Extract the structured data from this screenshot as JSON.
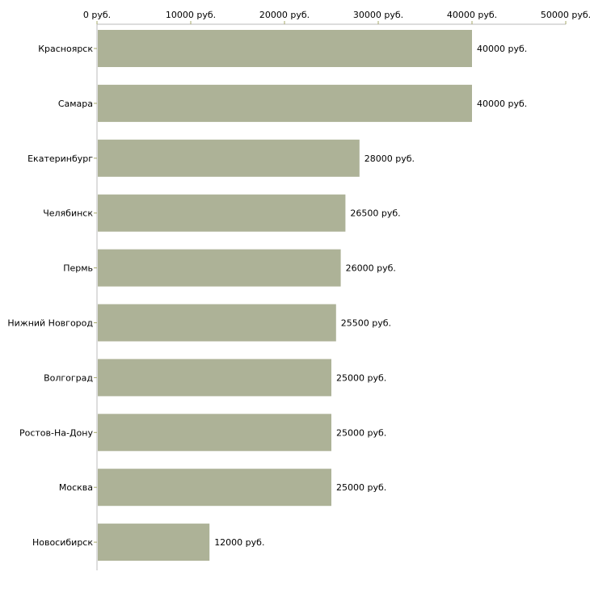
{
  "chart_data": {
    "type": "bar",
    "orientation": "horizontal",
    "title": "",
    "xlabel": "",
    "ylabel": "",
    "unit_suffix": " руб.",
    "xlim": [
      0,
      50000
    ],
    "xticks": [
      0,
      10000,
      20000,
      30000,
      40000,
      50000
    ],
    "xtick_labels": [
      "0 руб.",
      "10000 руб.",
      "20000 руб.",
      "30000 руб.",
      "40000 руб.",
      "50000 руб."
    ],
    "categories": [
      "Красноярск",
      "Самара",
      "Екатеринбург",
      "Челябинск",
      "Пермь",
      "Нижний Новгород",
      "Волгоград",
      "Ростов-На-Дону",
      "Москва",
      "Новосибирск"
    ],
    "values": [
      40000,
      40000,
      28000,
      26500,
      26000,
      25500,
      25000,
      25000,
      25000,
      12000
    ],
    "value_labels": [
      "40000 руб.",
      "40000 руб.",
      "28000 руб.",
      "26500 руб.",
      "26000 руб.",
      "25500 руб.",
      "25000 руб.",
      "25000 руб.",
      "25000 руб.",
      "12000 руб."
    ],
    "bar_color": "#adb297",
    "axis_color": "#bbbbbb",
    "tick_color": "#a6a86a",
    "grid": false
  }
}
